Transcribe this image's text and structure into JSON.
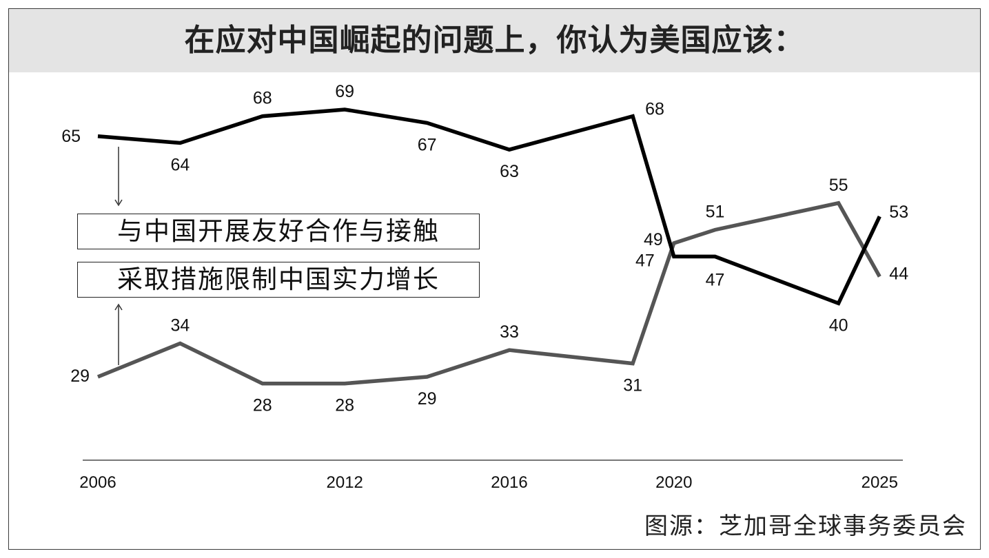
{
  "title": "在应对中国崛起的问题上，你认为美国应该：",
  "source": "图源：芝加哥全球事务委员会",
  "colors": {
    "engage": "#000000",
    "limit": "#555555",
    "axis": "#777777",
    "header_bg": "#e4e4e4"
  },
  "chart_data": {
    "type": "line",
    "title": "在应对中国崛起的问题上，你认为美国应该：",
    "xlabel": "",
    "ylabel": "",
    "x_ticks": [
      2006,
      2012,
      2016,
      2020,
      2025
    ],
    "ylim": [
      25,
      72
    ],
    "grid": false,
    "legend_placement": "left",
    "series": [
      {
        "name": "与中国开展友好合作与接触",
        "color": "#000000",
        "x": [
          2006,
          2008,
          2010,
          2012,
          2014,
          2016,
          2019,
          2020,
          2021,
          2024,
          2025
        ],
        "values": [
          65,
          64,
          68,
          69,
          67,
          63,
          68,
          47,
          47,
          40,
          53
        ]
      },
      {
        "name": "采取措施限制中国实力增长",
        "color": "#555555",
        "x": [
          2006,
          2008,
          2010,
          2012,
          2014,
          2016,
          2019,
          2020,
          2021,
          2024,
          2025
        ],
        "values": [
          29,
          34,
          28,
          28,
          29,
          33,
          31,
          49,
          51,
          55,
          44
        ]
      }
    ]
  }
}
